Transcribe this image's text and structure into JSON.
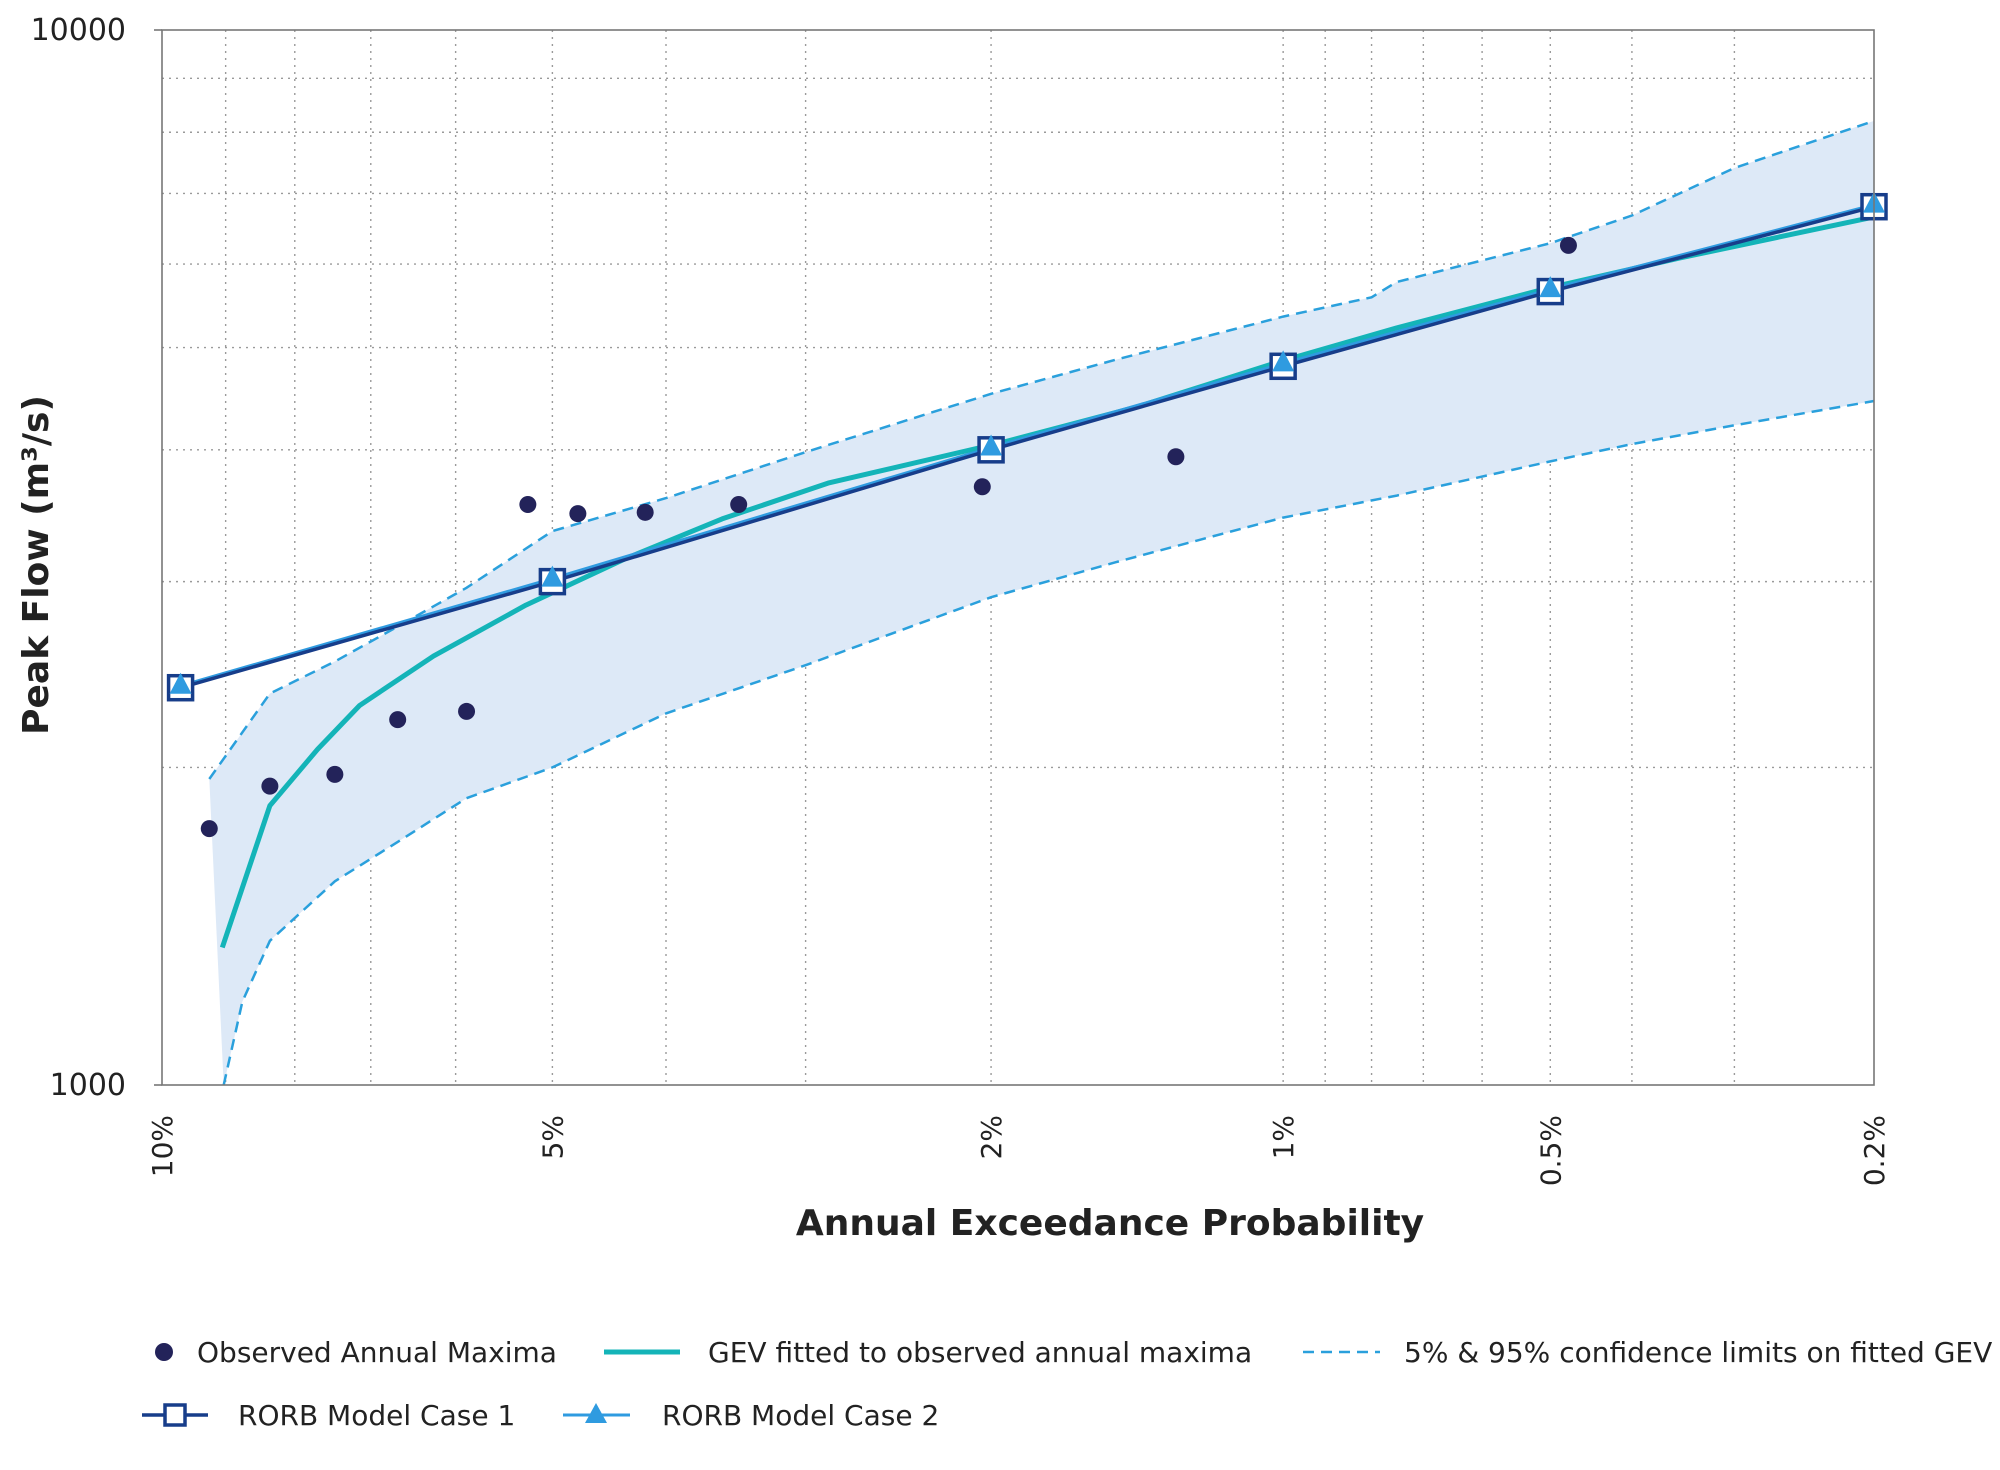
{
  "chart_data": {
    "type": "line",
    "xlabel": "Annual Exceedance Probability",
    "ylabel": "Peak Flow (m³/s)",
    "xscale": "probability (reversed, AEP decreasing left to right)",
    "yscale": "log",
    "xlim": [
      0.1,
      0.002
    ],
    "ylim": [
      1000,
      10000
    ],
    "x_ticks": [
      {
        "value": 0.1,
        "label": "10%"
      },
      {
        "value": 0.05,
        "label": "5%"
      },
      {
        "value": 0.02,
        "label": "2%"
      },
      {
        "value": 0.01,
        "label": "1%"
      },
      {
        "value": 0.005,
        "label": "0.5%"
      },
      {
        "value": 0.002,
        "label": "0.2%"
      }
    ],
    "y_ticks": [
      {
        "value": 1000,
        "label": "1000"
      },
      {
        "value": 10000,
        "label": "10000"
      }
    ],
    "grid": true,
    "legend_position": "bottom",
    "colors": {
      "observed": "#23235a",
      "gev": "#14b4b8",
      "confidence": "#2aa0dc",
      "band": "#dde9f7",
      "case1": "#173d8a",
      "case2": "#2f9be0",
      "grid": "#9a9a9a",
      "axis": "#777777"
    },
    "series": [
      {
        "name": "Observed Annual Maxima",
        "kind": "points",
        "points": [
          {
            "x": 0.0925,
            "y": 1750
          },
          {
            "x": 0.0835,
            "y": 1920
          },
          {
            "x": 0.0746,
            "y": 1970
          },
          {
            "x": 0.0667,
            "y": 2220
          },
          {
            "x": 0.0588,
            "y": 2260
          },
          {
            "x": 0.0524,
            "y": 3550
          },
          {
            "x": 0.0476,
            "y": 3480
          },
          {
            "x": 0.0417,
            "y": 3490
          },
          {
            "x": 0.0345,
            "y": 3550
          },
          {
            "x": 0.0204,
            "y": 3690
          },
          {
            "x": 0.013,
            "y": 3940
          },
          {
            "x": 0.00476,
            "y": 6250
          }
        ]
      },
      {
        "name": "GEV fitted to observed annual maxima",
        "kind": "line",
        "points": [
          {
            "x": 0.0905,
            "y": 1350
          },
          {
            "x": 0.0835,
            "y": 1840
          },
          {
            "x": 0.0769,
            "y": 2080
          },
          {
            "x": 0.0714,
            "y": 2290
          },
          {
            "x": 0.0625,
            "y": 2550
          },
          {
            "x": 0.0526,
            "y": 2850
          },
          {
            "x": 0.0435,
            "y": 3150
          },
          {
            "x": 0.0357,
            "y": 3440
          },
          {
            "x": 0.0286,
            "y": 3720
          },
          {
            "x": 0.0196,
            "y": 4060
          },
          {
            "x": 0.0143,
            "y": 4390
          },
          {
            "x": 0.01,
            "y": 4860
          },
          {
            "x": 0.0075,
            "y": 5220
          },
          {
            "x": 0.005,
            "y": 5700
          },
          {
            "x": 0.0035,
            "y": 6080
          },
          {
            "x": 0.002,
            "y": 6650
          }
        ]
      },
      {
        "name": "5% & 95% confidence limits on fitted GEV",
        "kind": "band",
        "upper": [
          {
            "x": 0.0925,
            "y": 1950
          },
          {
            "x": 0.0835,
            "y": 2350
          },
          {
            "x": 0.0746,
            "y": 2520
          },
          {
            "x": 0.0667,
            "y": 2720
          },
          {
            "x": 0.0588,
            "y": 2960
          },
          {
            "x": 0.05,
            "y": 3350
          },
          {
            "x": 0.04,
            "y": 3600
          },
          {
            "x": 0.03,
            "y": 3980
          },
          {
            "x": 0.02,
            "y": 4520
          },
          {
            "x": 0.015,
            "y": 4870
          },
          {
            "x": 0.01,
            "y": 5350
          },
          {
            "x": 0.008,
            "y": 5580
          },
          {
            "x": 0.0075,
            "y": 5770
          },
          {
            "x": 0.005,
            "y": 6280
          },
          {
            "x": 0.004,
            "y": 6670
          },
          {
            "x": 0.003,
            "y": 7400
          },
          {
            "x": 0.002,
            "y": 8200
          }
        ],
        "lower": [
          {
            "x": 0.0903,
            "y": 1000
          },
          {
            "x": 0.0875,
            "y": 1200
          },
          {
            "x": 0.0835,
            "y": 1370
          },
          {
            "x": 0.0746,
            "y": 1560
          },
          {
            "x": 0.0667,
            "y": 1700
          },
          {
            "x": 0.0588,
            "y": 1870
          },
          {
            "x": 0.05,
            "y": 2000
          },
          {
            "x": 0.04,
            "y": 2250
          },
          {
            "x": 0.03,
            "y": 2500
          },
          {
            "x": 0.02,
            "y": 2900
          },
          {
            "x": 0.015,
            "y": 3130
          },
          {
            "x": 0.01,
            "y": 3450
          },
          {
            "x": 0.0075,
            "y": 3620
          },
          {
            "x": 0.005,
            "y": 3900
          },
          {
            "x": 0.004,
            "y": 4050
          },
          {
            "x": 0.003,
            "y": 4220
          },
          {
            "x": 0.002,
            "y": 4450
          }
        ]
      },
      {
        "name": "RORB Model Case 1",
        "kind": "line-markers",
        "marker": "square",
        "points": [
          {
            "x": 0.097,
            "y": 2380
          },
          {
            "x": 0.05,
            "y": 3000
          },
          {
            "x": 0.02,
            "y": 4000
          },
          {
            "x": 0.01,
            "y": 4800
          },
          {
            "x": 0.005,
            "y": 5650
          },
          {
            "x": 0.002,
            "y": 6800
          }
        ]
      },
      {
        "name": "RORB Model Case 2",
        "kind": "line-markers",
        "marker": "triangle",
        "points": [
          {
            "x": 0.097,
            "y": 2390
          },
          {
            "x": 0.05,
            "y": 3020
          },
          {
            "x": 0.02,
            "y": 4020
          },
          {
            "x": 0.01,
            "y": 4830
          },
          {
            "x": 0.005,
            "y": 5680
          },
          {
            "x": 0.002,
            "y": 6830
          }
        ]
      }
    ]
  }
}
